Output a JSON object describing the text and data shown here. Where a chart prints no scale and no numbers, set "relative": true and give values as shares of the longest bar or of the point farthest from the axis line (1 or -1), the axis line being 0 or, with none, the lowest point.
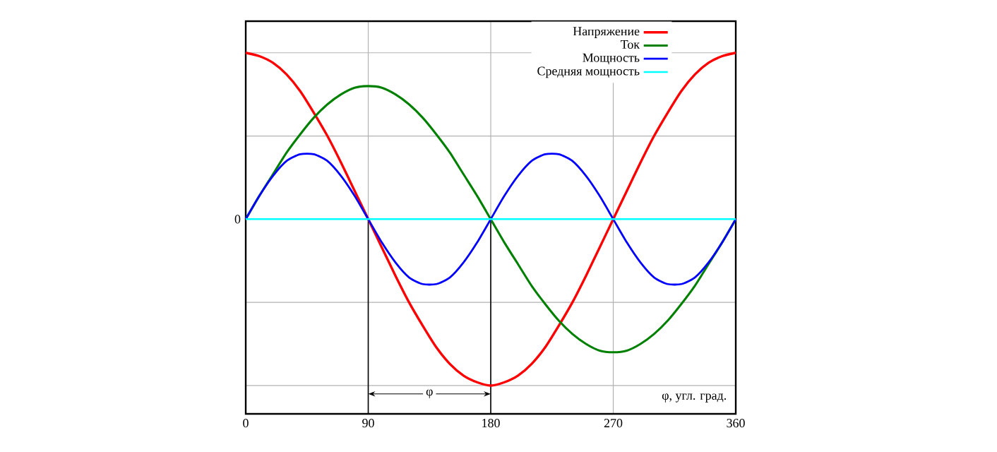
{
  "chart_data": {
    "type": "line",
    "relative": true,
    "xlabel": "φ, угл. град.",
    "x": [
      0,
      10,
      20,
      30,
      40,
      50,
      60,
      70,
      80,
      90,
      100,
      110,
      120,
      130,
      140,
      150,
      160,
      170,
      180,
      190,
      200,
      210,
      220,
      230,
      240,
      250,
      260,
      270,
      280,
      290,
      300,
      310,
      320,
      330,
      340,
      350,
      360
    ],
    "xlim": [
      0,
      360
    ],
    "xticks": [
      0,
      90,
      180,
      270,
      360
    ],
    "annotations": [
      "0",
      {
        "text": "φ",
        "x": 135,
        "y": -1.05
      }
    ],
    "grid": true,
    "legend": "top right",
    "ref_lines": [
      {
        "axis": "x",
        "value": 90
      },
      {
        "axis": "x",
        "value": 180
      }
    ],
    "series": [
      {
        "name": "Напряжение",
        "color": "#ff0000",
        "values": [
          1,
          0.98,
          0.94,
          0.87,
          0.77,
          0.64,
          0.5,
          0.34,
          0.17,
          0,
          -0.17,
          -0.34,
          -0.5,
          -0.64,
          -0.77,
          -0.87,
          -0.94,
          -0.98,
          -1,
          -0.98,
          -0.94,
          -0.87,
          -0.77,
          -0.64,
          -0.5,
          -0.34,
          -0.17,
          0,
          0.17,
          0.34,
          0.5,
          0.64,
          0.77,
          0.87,
          0.94,
          0.98,
          1
        ]
      },
      {
        "name": "Ток",
        "color": "#008000",
        "values": [
          0,
          0.14,
          0.27,
          0.4,
          0.51,
          0.61,
          0.69,
          0.75,
          0.79,
          0.8,
          0.79,
          0.75,
          0.69,
          0.61,
          0.51,
          0.4,
          0.27,
          0.14,
          0,
          -0.14,
          -0.27,
          -0.4,
          -0.51,
          -0.61,
          -0.69,
          -0.75,
          -0.79,
          -0.8,
          -0.79,
          -0.75,
          -0.69,
          -0.61,
          -0.51,
          -0.4,
          -0.27,
          -0.14,
          0
        ]
      },
      {
        "name": "Мощность",
        "color": "#0000ff",
        "values": [
          0,
          0.14,
          0.26,
          0.35,
          0.39,
          0.39,
          0.35,
          0.26,
          0.14,
          0,
          -0.14,
          -0.26,
          -0.35,
          -0.39,
          -0.39,
          -0.35,
          -0.26,
          -0.14,
          0,
          0.14,
          0.26,
          0.35,
          0.39,
          0.39,
          0.35,
          0.26,
          0.14,
          0,
          -0.14,
          -0.26,
          -0.35,
          -0.39,
          -0.39,
          -0.35,
          -0.26,
          -0.14,
          0
        ]
      },
      {
        "name": "Средняя мощность",
        "color": "#00ffff",
        "x": [
          0,
          360
        ],
        "values": [
          0,
          0
        ]
      }
    ]
  }
}
